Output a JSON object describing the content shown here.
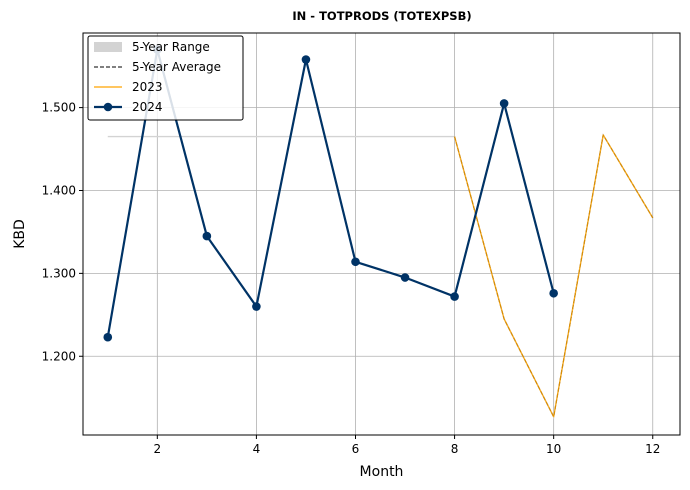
{
  "chart_data": {
    "type": "line",
    "title": "IN - TOTPRODS (TOTEXPSB)",
    "xlabel": "Month",
    "ylabel": "KBD",
    "xlim": [
      0.5,
      12.55
    ],
    "ylim": [
      1.105,
      1.59
    ],
    "x_ticks": [
      2,
      4,
      6,
      8,
      10,
      12
    ],
    "y_ticks": [
      1.2,
      1.3,
      1.4,
      1.5
    ],
    "y_tick_labels": [
      "1.200",
      "1.300",
      "1.400",
      "1.500"
    ],
    "grid": true,
    "legend_position": "top-left",
    "series": [
      {
        "name": "5-Year Range",
        "kind": "range",
        "color": "#d3d3d3",
        "x": [
          1,
          2,
          3,
          4,
          5,
          6,
          7,
          8,
          9,
          10,
          11,
          12
        ],
        "low": [
          1.465,
          1.465,
          1.465,
          1.465,
          1.465,
          1.465,
          1.465,
          1.465,
          1.245,
          1.127,
          1.467,
          1.367
        ],
        "high": [
          1.465,
          1.465,
          1.465,
          1.465,
          1.465,
          1.465,
          1.465,
          1.465,
          1.245,
          1.127,
          1.467,
          1.367
        ]
      },
      {
        "name": "5-Year Average",
        "kind": "dashed",
        "color": "#000000",
        "x": [
          8,
          9,
          10,
          11,
          12
        ],
        "y": [
          1.465,
          1.245,
          1.127,
          1.467,
          1.367
        ]
      },
      {
        "name": "2023",
        "kind": "line",
        "color": "#ffa500",
        "x": [
          8,
          9,
          10,
          11,
          12
        ],
        "y": [
          1.465,
          1.245,
          1.127,
          1.467,
          1.367
        ]
      },
      {
        "name": "2024",
        "kind": "line-marker",
        "color": "#003366",
        "x": [
          1,
          2,
          3,
          4,
          5,
          6,
          7,
          8,
          9,
          10
        ],
        "y": [
          1.223,
          1.57,
          1.345,
          1.26,
          1.558,
          1.314,
          1.295,
          1.272,
          1.505,
          1.276
        ]
      }
    ]
  }
}
